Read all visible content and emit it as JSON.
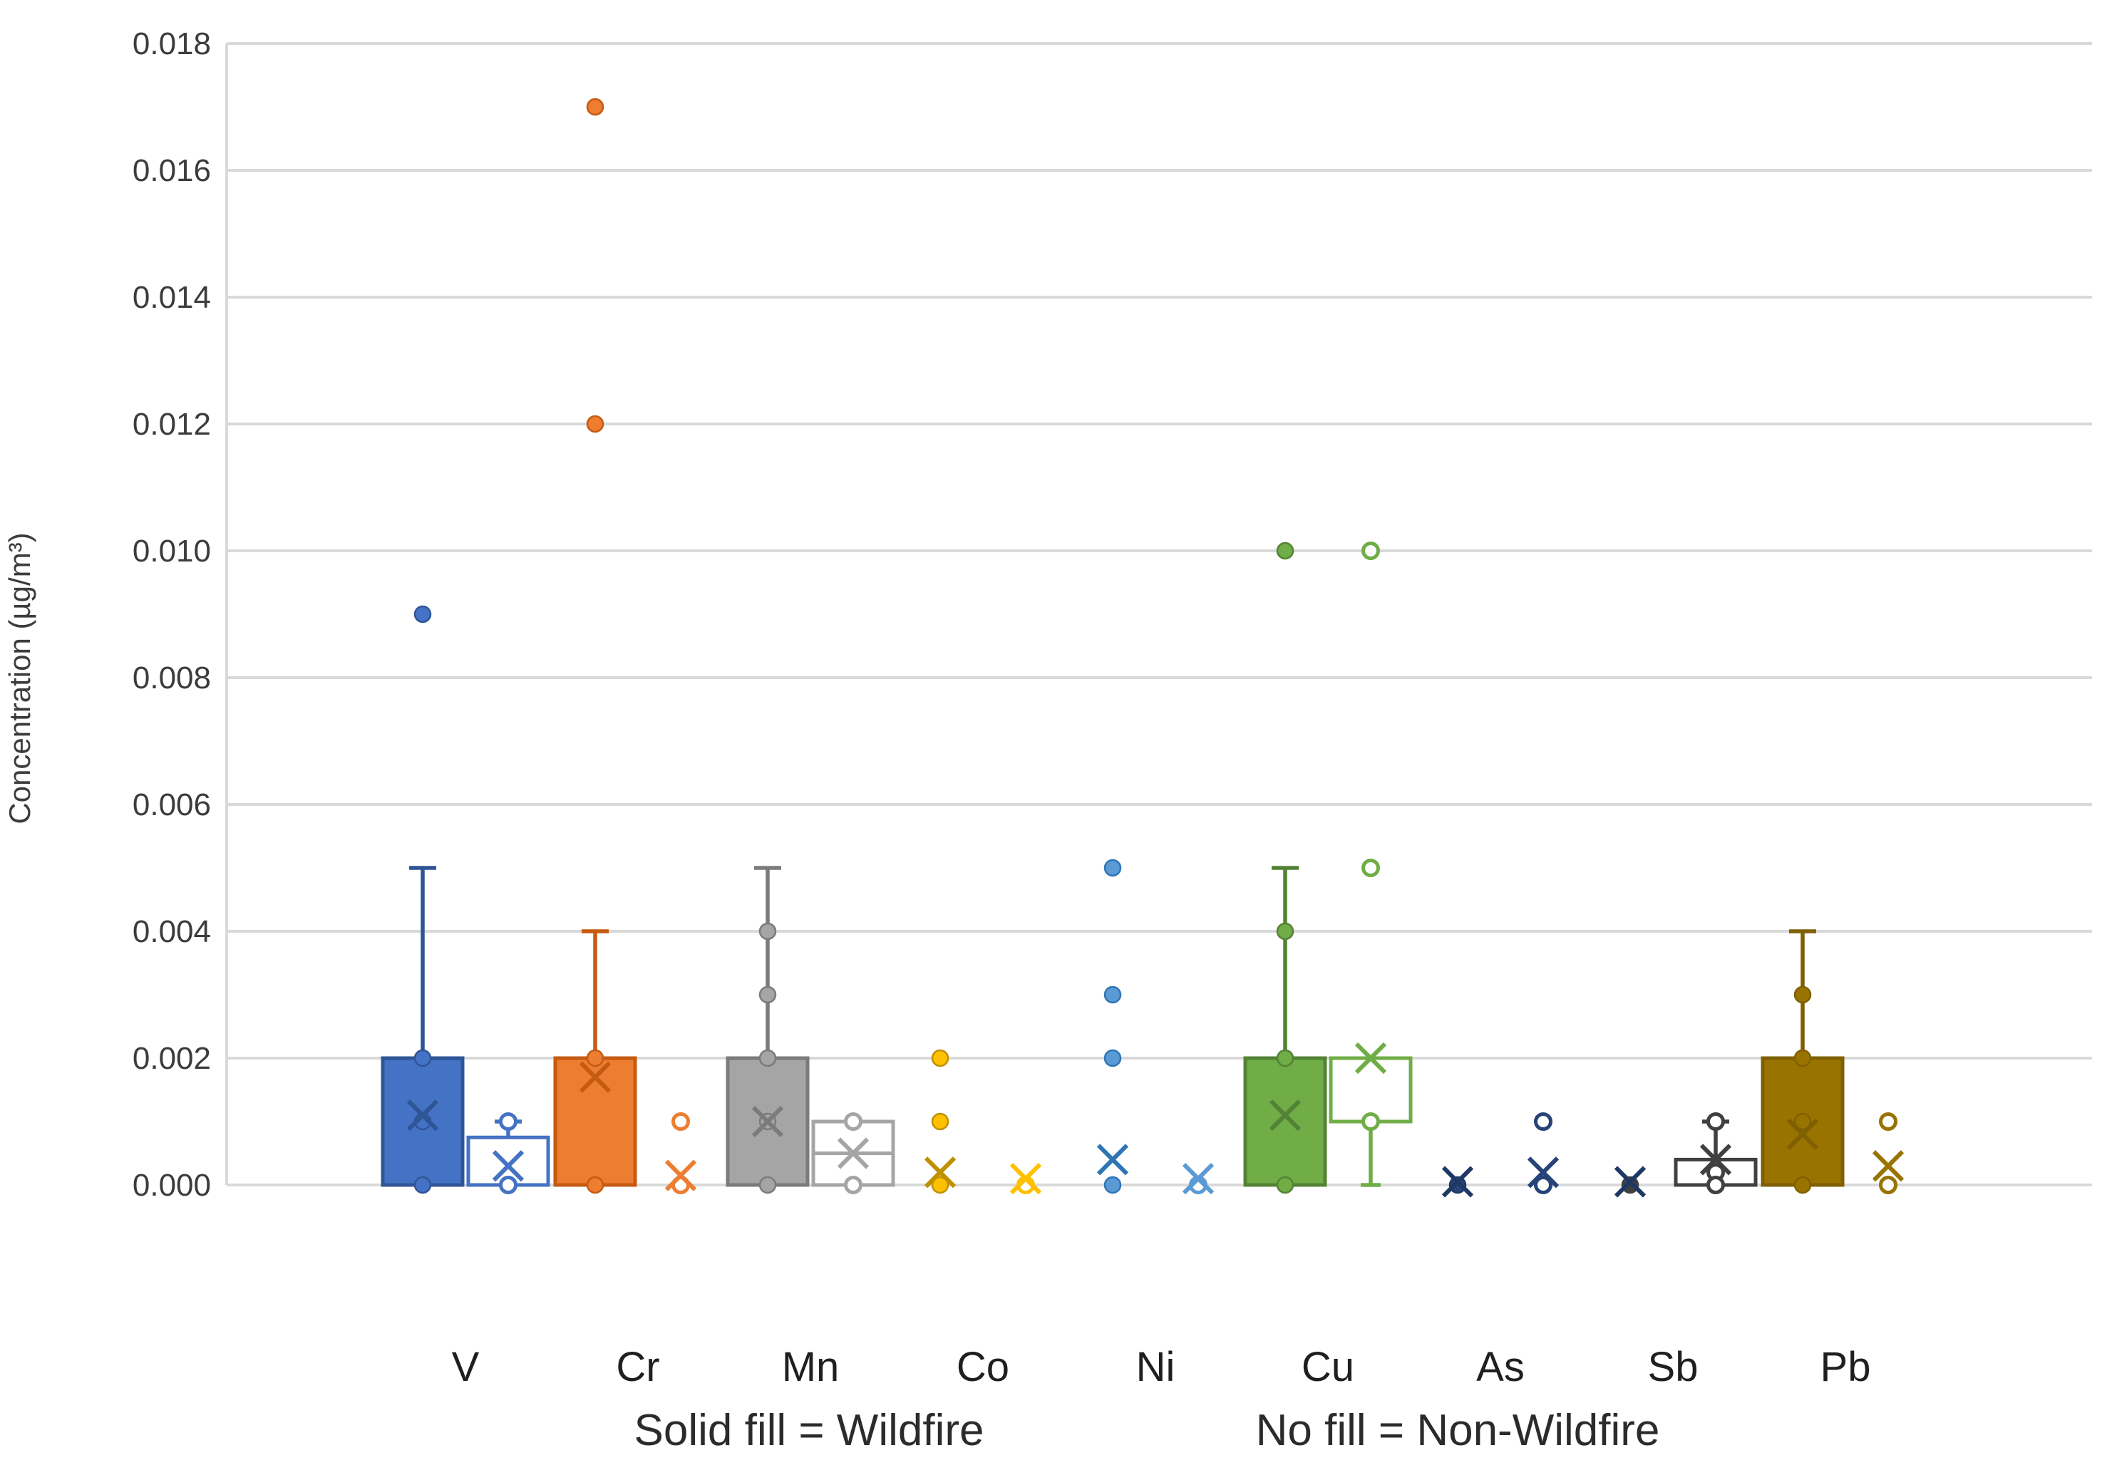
{
  "chart_data": {
    "type": "box",
    "title": "",
    "ylabel": "Concentration (µg/m³)",
    "xlabel": "",
    "ylim": [
      0,
      0.018
    ],
    "ytick_step": 0.002,
    "ytick_labels": [
      "0.000",
      "0.002",
      "0.004",
      "0.006",
      "0.008",
      "0.010",
      "0.012",
      "0.014",
      "0.016",
      "0.018"
    ],
    "grid": true,
    "legend_position": "bottom-caption",
    "caption_solid": "Solid fill = Wildfire",
    "caption_nofill": "No fill = Non-Wildfire",
    "categories": [
      "V",
      "Cr",
      "Mn",
      "Co",
      "Ni",
      "Cu",
      "As",
      "Sb",
      "Pb"
    ],
    "series": [
      {
        "name": "Wildfire",
        "style": "solid-fill"
      },
      {
        "name": "Non-Wildfire",
        "style": "no-fill"
      }
    ],
    "groups": [
      {
        "element": "V",
        "color": "#4472C4",
        "dark": "#2F5597",
        "wildfire": {
          "box": [
            0,
            0.002
          ],
          "whisker_high": 0.005,
          "mean": 0.0011,
          "points": [
            0.009,
            0.002,
            0.001,
            0
          ]
        },
        "non_wildfire": {
          "box": [
            0,
            0.00075
          ],
          "whisker_high": 0.001,
          "mean": 0.0003,
          "points": [
            0.001,
            0
          ]
        }
      },
      {
        "element": "Cr",
        "color": "#ED7D31",
        "dark": "#C55A11",
        "wildfire": {
          "box": [
            0,
            0.002
          ],
          "whisker_high": 0.004,
          "mean": 0.0017,
          "points": [
            0.017,
            0.012,
            0.002,
            0
          ]
        },
        "non_wildfire": {
          "mean": 0.00015,
          "points": [
            0.001,
            0
          ]
        }
      },
      {
        "element": "Mn",
        "color": "#A5A5A5",
        "dark": "#7B7B7B",
        "wildfire": {
          "box": [
            0,
            0.002
          ],
          "whisker_high": 0.005,
          "mean": 0.001,
          "points": [
            0.004,
            0.003,
            0.002,
            0.001,
            0
          ]
        },
        "non_wildfire": {
          "box": [
            0,
            0.001
          ],
          "median": 0.0005,
          "mean": 0.0005,
          "points": [
            0.001,
            0
          ]
        }
      },
      {
        "element": "Co",
        "color": "#FFC000",
        "dark": "#BF9000",
        "wildfire": {
          "mean": 0.0002,
          "points": [
            0.002,
            0.001,
            0
          ]
        },
        "non_wildfire": {
          "mean": 0.0001,
          "points": [
            0
          ]
        }
      },
      {
        "element": "Ni",
        "color": "#5B9BD5",
        "dark": "#2E75B6",
        "wildfire": {
          "mean": 0.0004,
          "points": [
            0.005,
            0.003,
            0.002,
            0
          ]
        },
        "non_wildfire": {
          "mean": 0.0001,
          "points": [
            0
          ]
        }
      },
      {
        "element": "Cu",
        "color": "#70AD47",
        "dark": "#548235",
        "wildfire": {
          "box": [
            0,
            0.002
          ],
          "whisker_high": 0.005,
          "mean": 0.0011,
          "points": [
            0.01,
            0.004,
            0.002,
            0
          ]
        },
        "non_wildfire": {
          "box": [
            0.001,
            0.002
          ],
          "whisker_low": 0,
          "mean": 0.002,
          "points": [
            0.01,
            0.005,
            0.001
          ]
        }
      },
      {
        "element": "As",
        "color": "#264478",
        "dark": "#203864",
        "wildfire": {
          "mean": 5e-05,
          "points": [
            0
          ]
        },
        "non_wildfire": {
          "mean": 0.0002,
          "points": [
            0.001,
            0
          ]
        }
      },
      {
        "element": "Sb",
        "color": "#404040",
        "dark": "#404040",
        "wf_marker_color": "#1F3864",
        "wildfire": {
          "mean": 5e-05,
          "points": [
            0
          ]
        },
        "non_wildfire": {
          "box": [
            0,
            0.0004
          ],
          "whisker_high": 0.001,
          "mean": 0.0004,
          "points": [
            0.001,
            0.0002,
            0
          ]
        }
      },
      {
        "element": "Pb",
        "color": "#997300",
        "dark": "#7F6000",
        "wildfire": {
          "box": [
            0,
            0.002
          ],
          "whisker_high": 0.004,
          "mean": 0.0008,
          "points": [
            0.003,
            0.002,
            0.001,
            0
          ]
        },
        "non_wildfire": {
          "mean": 0.0003,
          "points": [
            0.001,
            0
          ]
        }
      }
    ],
    "colors": {
      "gridline": "#D9D9D9",
      "axis_line": "#D9D9D9",
      "tick_text": "#3c3c3c",
      "label_text": "#1f1f1f"
    }
  }
}
